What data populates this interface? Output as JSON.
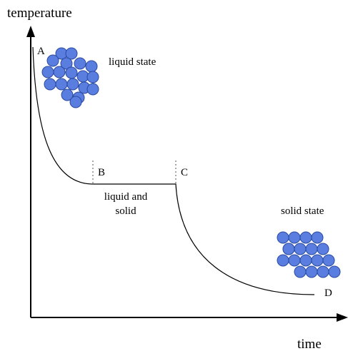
{
  "axes": {
    "y_label": "temperature",
    "x_label": "time"
  },
  "points": [
    {
      "label": "A"
    },
    {
      "label": "B"
    },
    {
      "label": "C"
    },
    {
      "label": "D"
    }
  ],
  "regions": {
    "liquid": "liquid state",
    "mixed": [
      "liquid and",
      "solid"
    ],
    "solid": "solid state"
  }
}
